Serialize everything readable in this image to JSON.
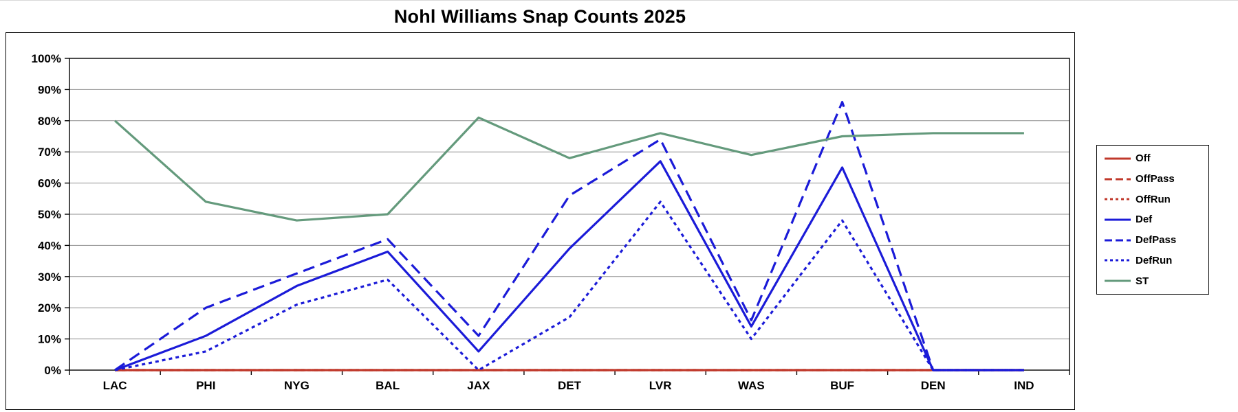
{
  "chart_data": {
    "type": "line",
    "title": "Nohl Williams Snap Counts 2025",
    "categories": [
      "LAC",
      "PHI",
      "NYG",
      "BAL",
      "JAX",
      "DET",
      "LVR",
      "WAS",
      "BUF",
      "DEN",
      "IND"
    ],
    "series": [
      {
        "name": "Off",
        "color": "#c0392b",
        "dash": "solid",
        "values": [
          0,
          0,
          0,
          0,
          0,
          0,
          0,
          0,
          0,
          0,
          0
        ]
      },
      {
        "name": "OffPass",
        "color": "#c0392b",
        "dash": "long",
        "values": [
          0,
          0,
          0,
          0,
          0,
          0,
          0,
          0,
          0,
          0,
          0
        ]
      },
      {
        "name": "OffRun",
        "color": "#c0392b",
        "dash": "short",
        "values": [
          0,
          0,
          0,
          0,
          0,
          0,
          0,
          0,
          0,
          0,
          0
        ]
      },
      {
        "name": "Def",
        "color": "#1b1bd8",
        "dash": "solid",
        "values": [
          0,
          11,
          27,
          38,
          6,
          39,
          67,
          14,
          65,
          0,
          0
        ]
      },
      {
        "name": "DefPass",
        "color": "#1b1bd8",
        "dash": "long",
        "values": [
          0,
          20,
          31,
          42,
          11,
          56,
          74,
          16,
          86,
          0,
          0
        ]
      },
      {
        "name": "DefRun",
        "color": "#1b1bd8",
        "dash": "short",
        "values": [
          0,
          6,
          21,
          29,
          0,
          17,
          54,
          10,
          48,
          0,
          0
        ]
      },
      {
        "name": "ST",
        "color": "#649a7c",
        "dash": "solid",
        "values": [
          80,
          54,
          48,
          50,
          81,
          68,
          76,
          69,
          75,
          76,
          76
        ]
      }
    ],
    "ylabel_ticks": [
      "0%",
      "10%",
      "20%",
      "30%",
      "40%",
      "50%",
      "60%",
      "70%",
      "80%",
      "90%",
      "100%"
    ],
    "ylim": [
      0,
      100
    ],
    "xlabel": "",
    "ylabel": "",
    "grid": true,
    "legend_position": "right",
    "colors": {
      "offense": "#c0392b",
      "defense": "#1b1bd8",
      "special_teams": "#649a7c",
      "gridline": "#8f8f8f",
      "axis": "#000000"
    }
  }
}
